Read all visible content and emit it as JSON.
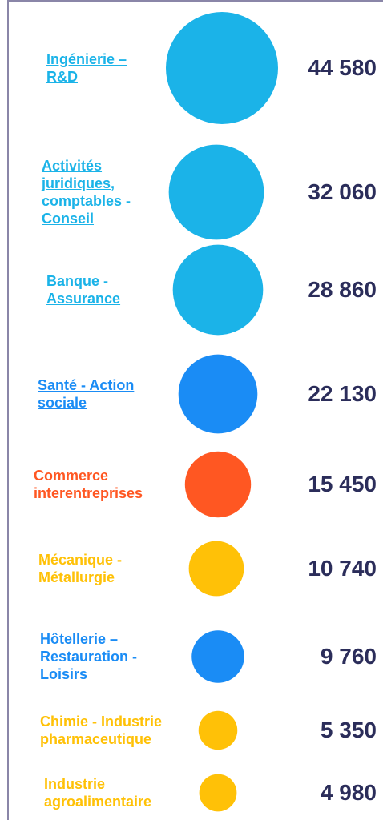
{
  "chart_data": {
    "type": "bubble",
    "categories": [
      "Ingénierie – R&D",
      "Activités juridiques, comptables - Conseil",
      "Banque - Assurance",
      "Santé - Action sociale",
      "Commerce interentreprises",
      "Mécanique - Métallurgie",
      "Hôtellerie – Restauration - Loisirs",
      "Chimie - Industrie pharmaceutique",
      "Industrie agroalimentaire"
    ],
    "values": [
      44580,
      32060,
      28860,
      22130,
      15450,
      10740,
      9760,
      5350,
      4980
    ],
    "value_labels": [
      "44 580",
      "32 060",
      "28 860",
      "22 130",
      "15 450",
      "10 740",
      "9 760",
      "5 350",
      "4 980"
    ],
    "colors": [
      "#1bb3e8",
      "#1bb3e8",
      "#1bb3e8",
      "#1a8cf5",
      "#ff5722",
      "#ffc107",
      "#1a8cf5",
      "#ffc107",
      "#ffc107"
    ],
    "underlined": [
      true,
      true,
      true,
      true,
      false,
      false,
      false,
      false,
      false
    ]
  }
}
